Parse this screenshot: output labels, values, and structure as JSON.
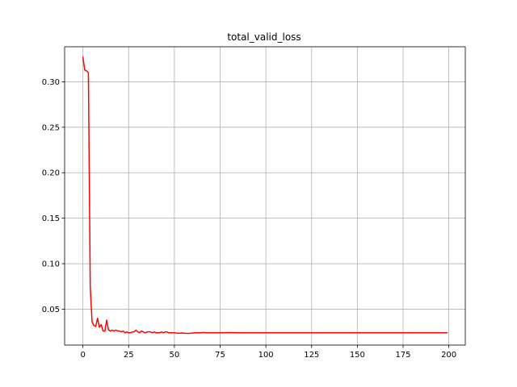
{
  "chart_data": {
    "type": "line",
    "title": "total_valid_loss",
    "xlabel": "",
    "ylabel": "",
    "xlim": [
      -10,
      209
    ],
    "ylim": [
      0.0105,
      0.3385
    ],
    "grid": true,
    "x_ticks": [
      0,
      25,
      50,
      75,
      100,
      125,
      150,
      175,
      200
    ],
    "y_ticks": [
      0.05,
      0.1,
      0.15,
      0.2,
      0.25,
      0.3
    ],
    "y_tick_labels": [
      "0.05",
      "0.10",
      "0.15",
      "0.20",
      "0.25",
      "0.30"
    ],
    "colors": {
      "line": "#ff0000",
      "grid": "#b0b0b0",
      "axes": "#000000"
    },
    "series": [
      {
        "x": [
          0,
          1,
          2,
          3,
          4,
          5,
          6,
          7,
          8,
          9,
          10,
          11,
          12,
          13,
          14,
          15,
          16,
          17,
          18,
          19,
          20,
          21,
          22,
          23,
          24,
          25,
          26,
          27,
          28,
          29,
          30,
          31,
          32,
          33,
          34,
          35,
          36,
          37,
          38,
          39,
          40,
          41,
          42,
          43,
          44,
          45,
          46,
          47,
          48,
          49,
          50,
          52,
          54,
          56,
          58,
          60,
          62,
          64,
          66,
          68,
          70,
          75,
          80,
          85,
          90,
          95,
          100,
          110,
          120,
          130,
          140,
          150,
          160,
          170,
          180,
          190,
          199
        ],
        "values": [
          0.327,
          0.313,
          0.312,
          0.31,
          0.075,
          0.036,
          0.032,
          0.031,
          0.04,
          0.03,
          0.033,
          0.026,
          0.026,
          0.038,
          0.027,
          0.026,
          0.027,
          0.026,
          0.027,
          0.026,
          0.026,
          0.025,
          0.026,
          0.024,
          0.025,
          0.024,
          0.024,
          0.025,
          0.025,
          0.027,
          0.025,
          0.024,
          0.026,
          0.025,
          0.024,
          0.025,
          0.025,
          0.025,
          0.024,
          0.025,
          0.024,
          0.024,
          0.024,
          0.025,
          0.024,
          0.025,
          0.025,
          0.024,
          0.024,
          0.024,
          0.024,
          0.0235,
          0.0238,
          0.0235,
          0.0233,
          0.0238,
          0.024,
          0.024,
          0.0243,
          0.024,
          0.024,
          0.024,
          0.0242,
          0.024,
          0.024,
          0.024,
          0.024,
          0.024,
          0.024,
          0.024,
          0.024,
          0.024,
          0.024,
          0.024,
          0.024,
          0.024,
          0.024
        ]
      }
    ]
  }
}
